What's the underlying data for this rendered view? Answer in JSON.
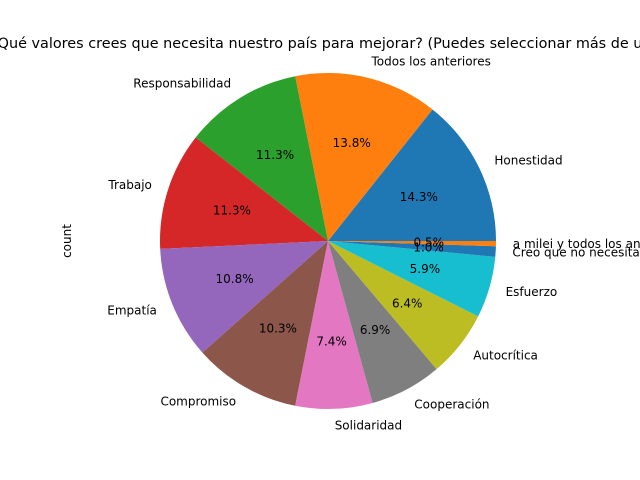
{
  "chart_data": {
    "type": "pie",
    "title": "¿Qué valores crees que necesita nuestro país para mejorar? (Puedes seleccionar más de uno)",
    "ylabel": "count",
    "autopct_format": "%.1f%%",
    "start_angle_deg": 0,
    "direction": "counterclockwise",
    "slices": [
      {
        "label": "Honestidad",
        "value": 14.3,
        "pct_label": "14.3%",
        "color": "#1f77b4"
      },
      {
        "label": "Todos los anteriores",
        "value": 13.8,
        "pct_label": "13.8%",
        "color": "#ff7f0e"
      },
      {
        "label": "Responsabilidad",
        "value": 11.3,
        "pct_label": "11.3%",
        "color": "#2ca02c"
      },
      {
        "label": "Trabajo",
        "value": 11.3,
        "pct_label": "11.3%",
        "color": "#d62728"
      },
      {
        "label": "Empatía",
        "value": 10.8,
        "pct_label": "10.8%",
        "color": "#9467bd"
      },
      {
        "label": "Compromiso",
        "value": 10.3,
        "pct_label": "10.3%",
        "color": "#8c564b"
      },
      {
        "label": "Solidaridad",
        "value": 7.4,
        "pct_label": "7.4%",
        "color": "#e377c2"
      },
      {
        "label": "Cooperación",
        "value": 6.9,
        "pct_label": "6.9%",
        "color": "#7f7f7f"
      },
      {
        "label": "Autocrítica",
        "value": 6.4,
        "pct_label": "6.4%",
        "color": "#bcbd22"
      },
      {
        "label": "Esfuerzo",
        "value": 5.9,
        "pct_label": "5.9%",
        "color": "#17becf"
      },
      {
        "label": "Creo que no necesita nada",
        "value": 1.0,
        "pct_label": "1.0%",
        "color": "#1f77b4"
      },
      {
        "label": "a milei y todos los anteriores",
        "value": 0.5,
        "pct_label": "0.5%",
        "color": "#ff7f0e"
      }
    ]
  }
}
